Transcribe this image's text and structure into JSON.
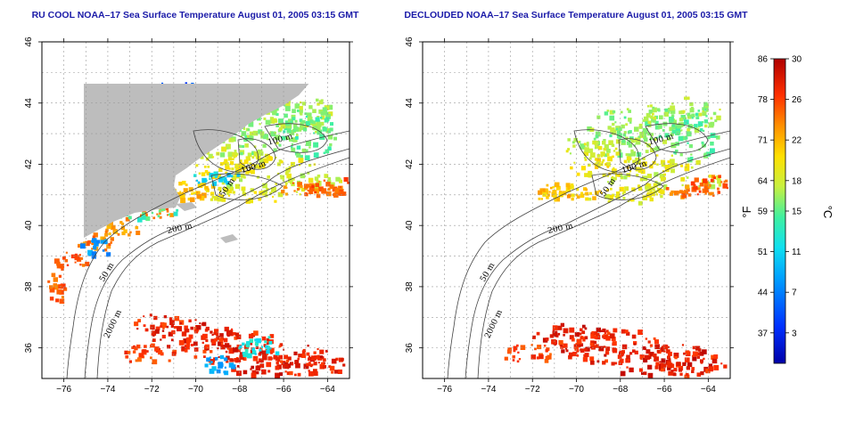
{
  "colors": {
    "land": "#bdbdbd",
    "ocean_bg": "#ffffff",
    "title": "#1a1aa8",
    "grid": "#9a9a9a",
    "contour": "#444444"
  },
  "chart_data": [
    {
      "type": "heatmap",
      "title": "RU COOL NOAA–17 Sea Surface Temperature August 01, 2005 03:15 GMT",
      "x_ticks": [
        "−76",
        "−74",
        "−72",
        "−70",
        "−68",
        "−66",
        "−64"
      ],
      "y_ticks": [
        "36",
        "38",
        "40",
        "42",
        "44",
        "46"
      ],
      "xlim": [
        -77,
        -63
      ],
      "ylim": [
        35,
        46
      ],
      "contour_labels": [
        "100 m",
        "100 m",
        "50 m",
        "200 m",
        "50 m",
        "2000 m"
      ],
      "grid": true
    },
    {
      "type": "heatmap",
      "title": "DECLOUDED NOAA–17 Sea Surface Temperature August 01, 2005 03:15 GMT",
      "x_ticks": [
        "−76",
        "−74",
        "−72",
        "−70",
        "−68",
        "−66",
        "−64"
      ],
      "y_ticks": [
        "36",
        "38",
        "40",
        "42",
        "44",
        "46"
      ],
      "xlim": [
        -77,
        -63
      ],
      "ylim": [
        35,
        46
      ],
      "contour_labels": [
        "100 m",
        "100 m",
        "50 m",
        "200 m",
        "50 m",
        "2000 m"
      ],
      "grid": true
    }
  ],
  "colorbar": {
    "fahrenheit_ticks": [
      "86",
      "78",
      "71",
      "64",
      "59",
      "51",
      "44",
      "37"
    ],
    "celsius_ticks": [
      "30",
      "26",
      "22",
      "18",
      "15",
      "11",
      "7",
      "3"
    ],
    "fahrenheit_unit": "°F",
    "celsius_unit": "°C",
    "range_c": [
      0,
      30
    ]
  }
}
